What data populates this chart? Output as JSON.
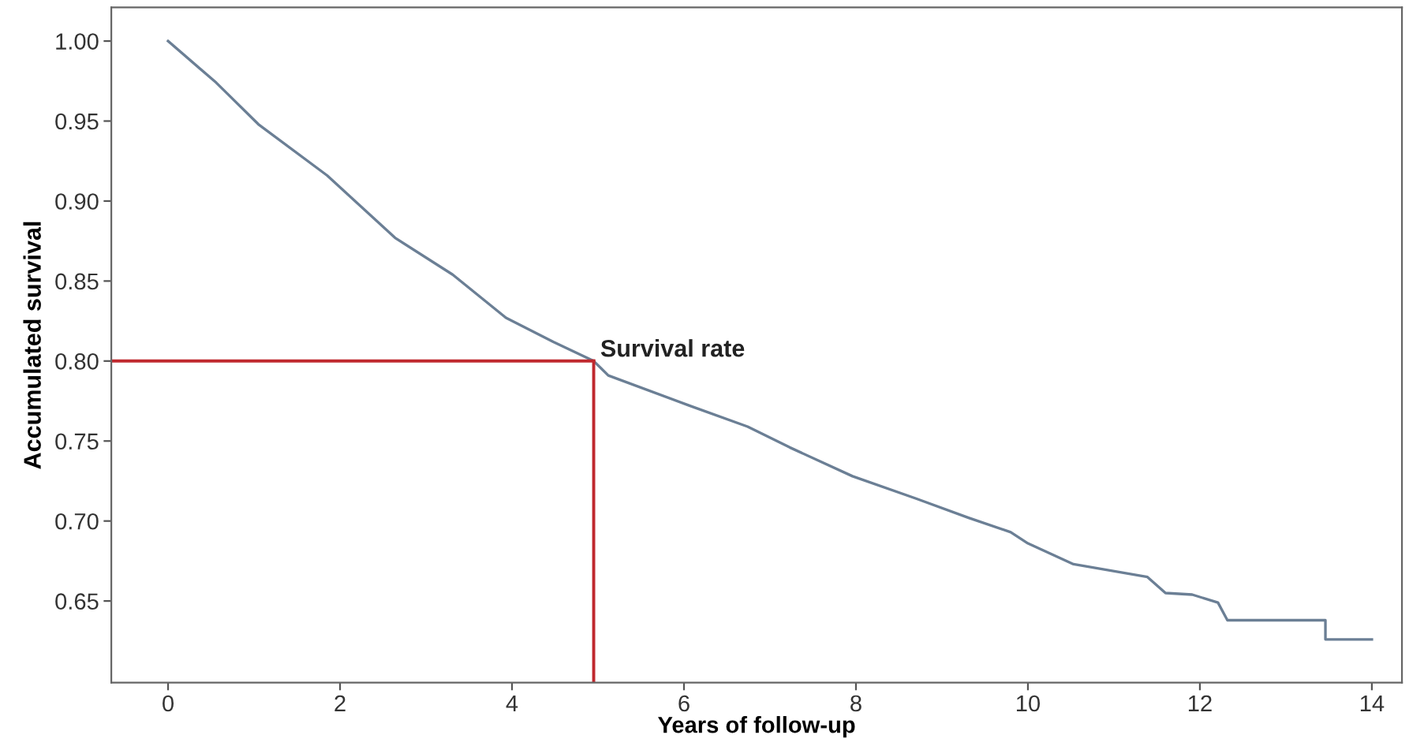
{
  "chart_data": {
    "type": "line",
    "xlabel": "Years of follow-up",
    "ylabel": "Accumulated survival",
    "series": [
      {
        "color": "#6b7f95",
        "x": [
          0,
          0.56,
          1.05,
          1.85,
          2.64,
          3.31,
          3.93,
          4.48,
          4.95,
          5.12,
          6.07,
          6.74,
          7.23,
          7.96,
          8.7,
          9.31,
          9.8,
          10.0,
          10.53,
          11.39,
          11.6,
          11.91,
          12.21,
          12.32,
          13.46,
          13.46,
          14.0
        ],
        "values": [
          1.0,
          0.974,
          0.948,
          0.916,
          0.877,
          0.854,
          0.827,
          0.812,
          0.8,
          0.791,
          0.772,
          0.759,
          0.746,
          0.728,
          0.714,
          0.702,
          0.693,
          0.686,
          0.673,
          0.665,
          0.655,
          0.654,
          0.649,
          0.638,
          0.638,
          0.626,
          0.626
        ]
      }
    ],
    "xlim": [
      -0.66,
      14.35
    ],
    "xticks": [
      0,
      2,
      4,
      6,
      8,
      10,
      12,
      14
    ],
    "ylim": [
      0.599,
      1.021
    ],
    "yticks": [
      0.65,
      {
        "value": 0.7,
        "label": "0.70"
      },
      0.75,
      {
        "value": 0.8,
        "label": "0.80"
      },
      0.85,
      {
        "value": 0.9,
        "label": "0.90"
      },
      0.95,
      {
        "value": 1.0,
        "label": "1.00"
      }
    ],
    "ref_lines": [
      {
        "axis": "y",
        "value": 0.8,
        "color": "#c0282e"
      },
      {
        "axis": "x",
        "value": 4.95,
        "color": "#c0282e"
      }
    ],
    "annotations": [
      {
        "text": "Survival rate",
        "x": 4.95,
        "y": 0.8
      }
    ],
    "grid": false
  }
}
